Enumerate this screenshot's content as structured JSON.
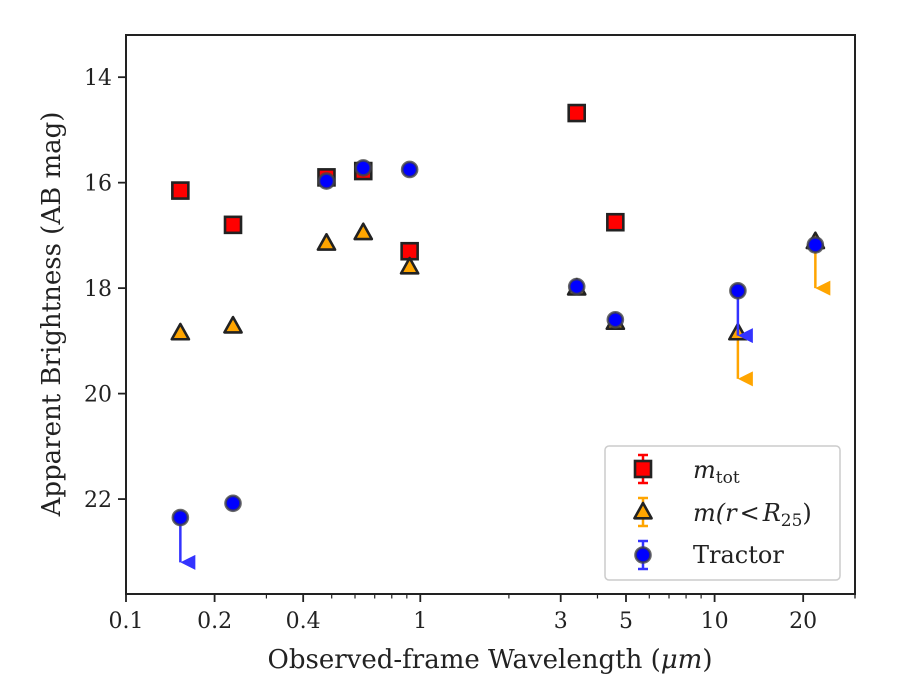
{
  "chart_data": {
    "type": "scatter",
    "title": "",
    "xlabel": "Observed-frame Wavelength (",
    "xlabel_unit": "μm",
    "xlabel_end": ")",
    "ylabel": "Apparent Brightness (AB mag)",
    "x_scale": "log",
    "xlim": [
      0.1,
      30
    ],
    "ylim": [
      23.8,
      13.2
    ],
    "y_inverted": true,
    "grid": false,
    "legend_position": "lower-right",
    "x_ticks": [
      {
        "value": 0.1,
        "label": "0.1"
      },
      {
        "value": 0.2,
        "label": "0.2"
      },
      {
        "value": 0.4,
        "label": "0.4"
      },
      {
        "value": 1,
        "label": "1"
      },
      {
        "value": 3,
        "label": "3"
      },
      {
        "value": 5,
        "label": "5"
      },
      {
        "value": 10,
        "label": "10"
      },
      {
        "value": 20,
        "label": "20"
      }
    ],
    "y_ticks": [
      {
        "value": 14,
        "label": "14"
      },
      {
        "value": 16,
        "label": "16"
      },
      {
        "value": 18,
        "label": "18"
      },
      {
        "value": 20,
        "label": "20"
      },
      {
        "value": 22,
        "label": "22"
      }
    ],
    "series": [
      {
        "name_base": "m",
        "name_sub": "tot",
        "marker": "square",
        "color": "#ff0000",
        "errcolor": "#ff0000",
        "points": [
          {
            "x": 0.153,
            "y": 16.15
          },
          {
            "x": 0.231,
            "y": 16.8
          },
          {
            "x": 0.48,
            "y": 15.9
          },
          {
            "x": 0.64,
            "y": 15.78
          },
          {
            "x": 0.92,
            "y": 17.3
          },
          {
            "x": 3.4,
            "y": 14.68
          },
          {
            "x": 4.6,
            "y": 16.75
          }
        ]
      },
      {
        "name_base": "m(r",
        "name_op": "<",
        "name_R": "R",
        "name_sub": "25",
        "name_end": ")",
        "marker": "triangle",
        "color": "#ffa500",
        "errcolor": "#ffa500",
        "points": [
          {
            "x": 0.153,
            "y": 18.85
          },
          {
            "x": 0.231,
            "y": 18.72
          },
          {
            "x": 0.48,
            "y": 17.15
          },
          {
            "x": 0.64,
            "y": 16.95
          },
          {
            "x": 0.92,
            "y": 17.6
          },
          {
            "x": 3.4,
            "y": 18.0
          },
          {
            "x": 4.6,
            "y": 18.65
          },
          {
            "x": 12.0,
            "y": 18.85,
            "upper_limit_to": 19.72
          },
          {
            "x": 22.0,
            "y": 17.12,
            "upper_limit_to": 18.0
          }
        ]
      },
      {
        "name": "Tractor",
        "marker": "circle",
        "color": "#0000ff",
        "errcolor": "#3333ff",
        "points": [
          {
            "x": 0.153,
            "y": 22.35,
            "upper_limit_to": 23.2
          },
          {
            "x": 0.231,
            "y": 22.08
          },
          {
            "x": 0.48,
            "y": 15.97
          },
          {
            "x": 0.64,
            "y": 15.72
          },
          {
            "x": 0.92,
            "y": 15.75
          },
          {
            "x": 3.4,
            "y": 17.97
          },
          {
            "x": 4.6,
            "y": 18.6
          },
          {
            "x": 12.0,
            "y": 18.05,
            "upper_limit_to": 18.9
          },
          {
            "x": 22.0,
            "y": 17.18
          }
        ]
      }
    ]
  }
}
